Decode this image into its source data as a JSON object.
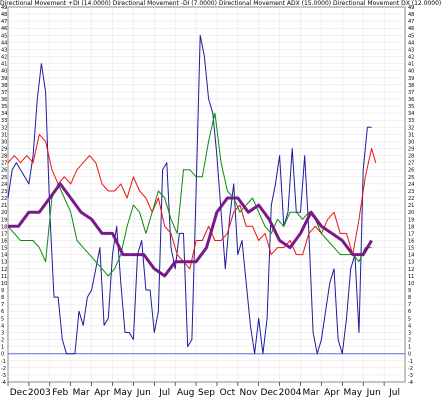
{
  "chart_data": {
    "type": "line",
    "title": "Directional Movement +DI (14.0000) Directional Movement -DI (7.0000) Directional Movement ADX (15.0000) Directional Movement DX (12.0000)",
    "xlabel": "",
    "ylabel": "",
    "ylim": [
      -4,
      49
    ],
    "grid": true,
    "legend": "none",
    "month_labels": [
      "Dec",
      "2003",
      "Feb",
      "Mar",
      "Apr",
      "May",
      "Jun",
      "Jul",
      "Aug",
      "Sep",
      "Oct",
      "Nov",
      "Dec",
      "2004",
      "Mar",
      "Apr",
      "May",
      "Jun",
      "Jul"
    ],
    "y_ticks": [
      -4,
      -3,
      -2,
      -1,
      0,
      1,
      2,
      3,
      4,
      5,
      6,
      7,
      8,
      9,
      10,
      11,
      12,
      13,
      14,
      15,
      16,
      17,
      18,
      19,
      20,
      21,
      22,
      23,
      24,
      25,
      26,
      27,
      28,
      29,
      30,
      31,
      32,
      33,
      34,
      35,
      36,
      37,
      38,
      39,
      40,
      41,
      42,
      43,
      44,
      45,
      46,
      47,
      48,
      49
    ],
    "x_domain": [
      0,
      19
    ],
    "reference_line": {
      "value": 0,
      "color": "#5a6fd8"
    },
    "series": [
      {
        "color": "#1c1c9c",
        "x": [
          0.0,
          0.2,
          0.4,
          0.6,
          0.8,
          1.0,
          1.2,
          1.4,
          1.6,
          1.8,
          2.0,
          2.2,
          2.4,
          2.6,
          2.8,
          3.0,
          3.2,
          3.4,
          3.6,
          3.8,
          4.0,
          4.2,
          4.4,
          4.6,
          4.8,
          5.0,
          5.2,
          5.4,
          5.6,
          5.8,
          6.0,
          6.2,
          6.4,
          6.6,
          6.8,
          7.0,
          7.2,
          7.4,
          7.6,
          7.8,
          8.0,
          8.2,
          8.4,
          8.6,
          8.8,
          9.0,
          9.2,
          9.4,
          9.6,
          9.8,
          10.0,
          10.2,
          10.4,
          10.6,
          10.8,
          11.0,
          11.2,
          11.4,
          11.6,
          11.8,
          12.0,
          12.2,
          12.4,
          12.6,
          12.8,
          13.0,
          13.2,
          13.4,
          13.6,
          13.8,
          14.0,
          14.2,
          14.4,
          14.6,
          14.8,
          15.0,
          15.2,
          15.4,
          15.6,
          15.8,
          16.0,
          16.2,
          16.4,
          16.6,
          16.8,
          17.0,
          17.2,
          17.4
        ],
        "values": [
          22,
          26,
          27,
          26,
          25,
          24,
          28,
          36,
          41,
          37,
          20,
          8,
          8,
          2,
          0,
          0,
          0,
          6,
          4,
          8,
          9,
          12,
          15,
          4,
          5,
          14,
          18,
          10,
          3,
          3,
          2,
          14,
          16,
          9,
          9,
          3,
          6,
          26,
          27,
          15,
          12,
          17,
          17,
          1,
          2,
          23,
          45,
          42,
          36,
          34,
          28,
          20,
          12,
          19,
          24,
          14,
          16,
          10,
          4,
          0,
          5,
          0,
          5,
          21,
          24,
          28,
          18,
          20,
          29,
          20,
          20,
          28,
          17,
          3,
          0,
          2,
          6,
          10,
          12,
          2,
          0,
          5,
          12,
          14,
          3,
          26,
          32,
          32
        ]
      },
      {
        "color": "#ee1111",
        "x": [
          0.0,
          0.3,
          0.6,
          0.9,
          1.2,
          1.5,
          1.8,
          2.1,
          2.4,
          2.7,
          3.0,
          3.3,
          3.6,
          3.9,
          4.2,
          4.5,
          4.8,
          5.1,
          5.4,
          5.7,
          6.0,
          6.3,
          6.6,
          6.9,
          7.2,
          7.5,
          7.8,
          8.1,
          8.4,
          8.7,
          9.0,
          9.3,
          9.6,
          9.9,
          10.2,
          10.5,
          10.8,
          11.1,
          11.4,
          11.7,
          12.0,
          12.3,
          12.6,
          12.9,
          13.2,
          13.5,
          13.8,
          14.1,
          14.4,
          14.7,
          15.0,
          15.3,
          15.6,
          15.9,
          16.2,
          16.5,
          16.8,
          17.1,
          17.4,
          17.6
        ],
        "values": [
          27,
          28,
          27,
          28,
          27,
          31,
          30,
          26,
          24,
          25,
          24,
          26,
          27,
          28,
          27,
          24,
          23,
          23,
          24,
          22,
          25,
          23,
          22,
          20,
          22,
          18,
          17,
          14,
          13,
          12,
          16,
          16,
          18,
          16,
          16,
          17,
          20,
          21,
          18,
          18,
          16,
          17,
          14,
          15,
          15,
          16,
          14,
          14,
          17,
          18,
          17,
          19,
          20,
          17,
          17,
          14,
          19,
          25,
          29,
          27
        ]
      },
      {
        "color": "#0b8a0b",
        "x": [
          0.0,
          0.3,
          0.6,
          0.9,
          1.2,
          1.5,
          1.8,
          2.1,
          2.4,
          2.7,
          3.0,
          3.3,
          3.6,
          3.9,
          4.2,
          4.5,
          4.8,
          5.1,
          5.4,
          5.7,
          6.0,
          6.3,
          6.6,
          6.9,
          7.2,
          7.5,
          7.8,
          8.1,
          8.4,
          8.7,
          9.0,
          9.3,
          9.6,
          9.9,
          10.2,
          10.5,
          10.8,
          11.1,
          11.4,
          11.7,
          12.0,
          12.3,
          12.6,
          12.9,
          13.2,
          13.5,
          13.8,
          14.1,
          14.4,
          14.7,
          15.0,
          15.3,
          15.6,
          15.9,
          16.2,
          16.5,
          16.8,
          17.1,
          17.4
        ],
        "values": [
          18,
          17,
          16,
          16,
          16,
          15,
          13,
          22,
          24,
          22,
          20,
          16,
          15,
          14,
          13,
          12,
          11,
          12,
          14,
          18,
          21,
          20,
          17,
          20,
          23,
          22,
          19,
          17,
          26,
          26,
          25,
          25,
          30,
          34,
          27,
          23,
          22,
          20,
          21,
          22,
          20,
          18,
          17,
          19,
          18,
          20,
          20,
          19,
          20,
          19,
          17,
          16,
          15,
          14,
          14,
          14,
          13,
          15,
          15
        ]
      },
      {
        "color": "#7a1a8a",
        "x": [
          0.0,
          0.5,
          1.0,
          1.5,
          2.0,
          2.5,
          3.0,
          3.5,
          4.0,
          4.5,
          5.0,
          5.5,
          6.0,
          6.5,
          7.0,
          7.5,
          8.0,
          8.5,
          9.0,
          9.5,
          10.0,
          10.5,
          11.0,
          11.5,
          12.0,
          12.5,
          13.0,
          13.5,
          14.0,
          14.5,
          15.0,
          15.5,
          16.0,
          16.5,
          17.0,
          17.4
        ],
        "values": [
          18,
          18,
          20,
          20,
          22,
          24,
          22,
          20,
          19,
          17,
          17,
          14,
          14,
          14,
          12,
          11,
          13,
          13,
          13,
          15,
          20,
          22,
          22,
          20,
          21,
          19,
          16,
          15,
          17,
          20,
          18,
          17,
          16,
          14,
          14,
          16
        ]
      }
    ]
  }
}
